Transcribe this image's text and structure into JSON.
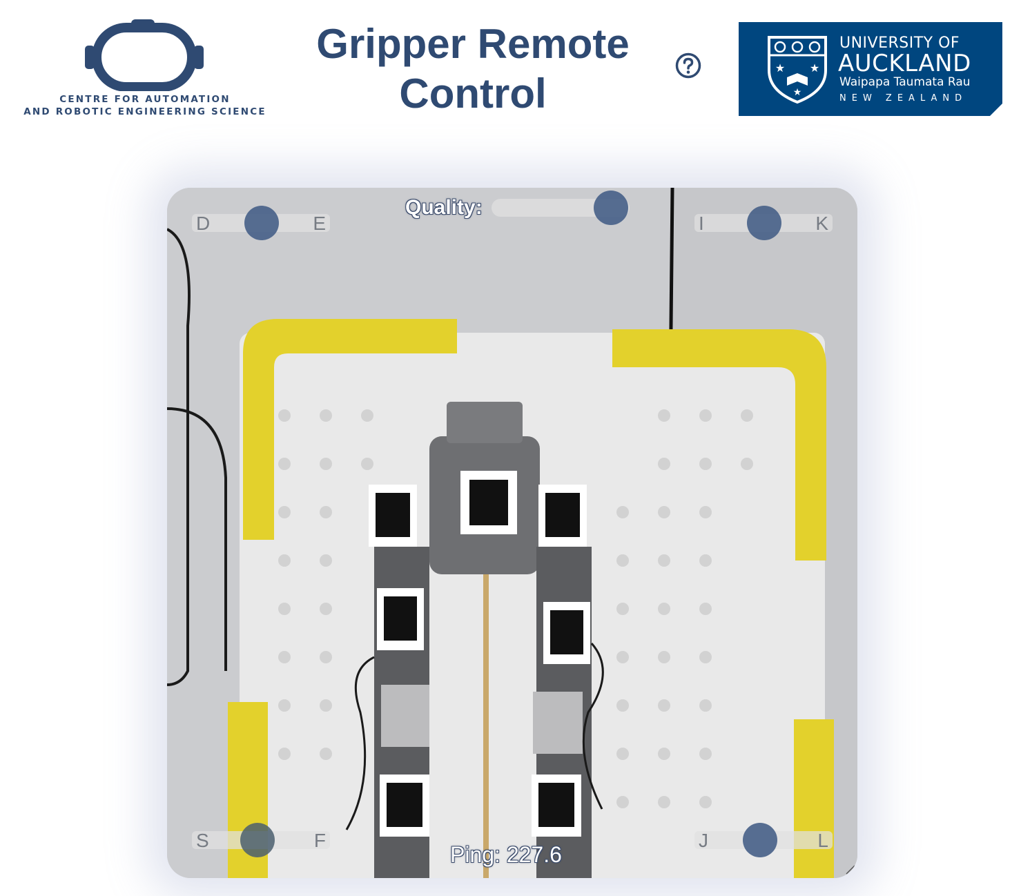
{
  "header": {
    "logo_left": {
      "line1": "CENTRE FOR AUTOMATION",
      "line2": "AND ROBOTIC ENGINEERING SCIENCE"
    },
    "title_line1": "Gripper Remote",
    "title_line2": "Control",
    "help_icon": "question-circle-icon",
    "logo_right": {
      "line1": "UNIVERSITY OF",
      "line2": "AUCKLAND",
      "line3": "Waipapa Taumata Rau",
      "line4": "NEW ZEALAND",
      "background": "#00467f"
    }
  },
  "video": {
    "quality_label": "Quality:",
    "ping_label": "Ping: 227.6",
    "sliders": [
      {
        "id": "de",
        "left_label": "D",
        "right_label": "E"
      },
      {
        "id": "ik",
        "left_label": "I",
        "right_label": "K"
      },
      {
        "id": "sf",
        "left_label": "S",
        "right_label": "F"
      },
      {
        "id": "jl",
        "left_label": "J",
        "right_label": "L"
      }
    ]
  },
  "colors": {
    "brand_blue": "#2f4a72",
    "knob": "#4a6289"
  }
}
